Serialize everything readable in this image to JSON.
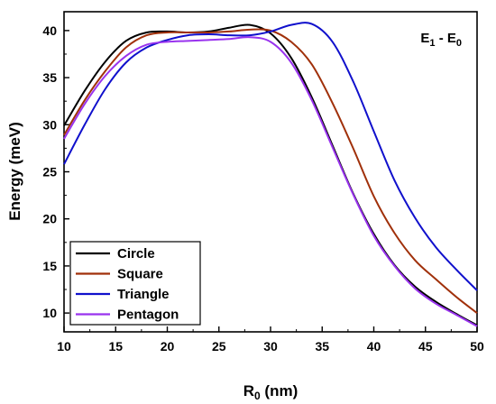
{
  "chart_data": {
    "type": "line",
    "title": "",
    "annotation": {
      "main": "E",
      "sub1": "1",
      "mid": " - E",
      "sub2": "0"
    },
    "xlabel": {
      "main": "R",
      "sub": "0",
      "rest": " (nm)"
    },
    "ylabel": "Energy (meV)",
    "xlim": [
      10,
      50
    ],
    "ylim": [
      8,
      42
    ],
    "xticks": [
      10,
      15,
      20,
      25,
      30,
      35,
      40,
      45,
      50
    ],
    "yticks": [
      10,
      15,
      20,
      25,
      30,
      35,
      40
    ],
    "grid": false,
    "legend_position": "bottom-left",
    "x": [
      10,
      12,
      14,
      16,
      18,
      20,
      22,
      24,
      26,
      28,
      30,
      32,
      34,
      36,
      38,
      40,
      42,
      44,
      46,
      48,
      50
    ],
    "series": [
      {
        "name": "Circle",
        "color": "#000000",
        "values": [
          29.9,
          33.6,
          36.7,
          38.9,
          39.8,
          39.9,
          39.8,
          39.9,
          40.3,
          40.6,
          39.7,
          37.1,
          32.9,
          27.8,
          22.7,
          18.4,
          15.1,
          12.8,
          11.2,
          9.9,
          8.7
        ]
      },
      {
        "name": "Square",
        "color": "#a0300a",
        "values": [
          28.9,
          32.6,
          35.7,
          38.2,
          39.5,
          39.8,
          39.8,
          39.8,
          39.9,
          40.1,
          40.0,
          38.8,
          36.4,
          32.3,
          27.5,
          22.4,
          18.5,
          15.6,
          13.6,
          11.7,
          10.0
        ]
      },
      {
        "name": "Triangle",
        "color": "#1010cc",
        "values": [
          25.8,
          30.0,
          33.8,
          36.6,
          38.2,
          39.0,
          39.5,
          39.6,
          39.5,
          39.5,
          39.9,
          40.6,
          40.7,
          38.8,
          34.6,
          29.3,
          24.1,
          20.1,
          17.0,
          14.6,
          12.4
        ]
      },
      {
        "name": "Pentagon",
        "color": "#9933ee",
        "values": [
          28.5,
          32.2,
          35.2,
          37.3,
          38.5,
          38.8,
          38.9,
          39.0,
          39.1,
          39.3,
          38.8,
          36.6,
          32.6,
          27.6,
          22.6,
          18.2,
          15.0,
          12.6,
          11.0,
          9.8,
          8.6
        ]
      }
    ]
  }
}
